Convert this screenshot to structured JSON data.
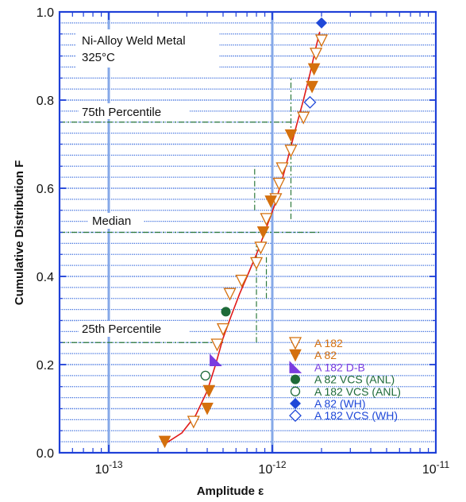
{
  "chart_data": {
    "type": "scatter",
    "title": "",
    "xlabel": "Amplitude ε",
    "ylabel": "Cumulative Distribution F",
    "x_scale": "log",
    "xlim": [
      5e-14,
      1e-11
    ],
    "ylim": [
      0,
      1
    ],
    "x_ticks": [
      {
        "value": 1e-13,
        "label": "10^-13",
        "base": "10",
        "exp": "-13"
      },
      {
        "value": 1e-12,
        "label": "10^-12",
        "base": "10",
        "exp": "-12"
      },
      {
        "value": 1e-11,
        "label": "10^-11",
        "base": "10",
        "exp": "-11"
      }
    ],
    "y_ticks": [
      {
        "value": 0.0,
        "label": "0.0"
      },
      {
        "value": 0.2,
        "label": "0.2"
      },
      {
        "value": 0.4,
        "label": "0.4"
      },
      {
        "value": 0.6,
        "label": "0.6"
      },
      {
        "value": 0.8,
        "label": "0.8"
      },
      {
        "value": 1.0,
        "label": "1.0"
      }
    ],
    "annotations": {
      "material": "Ni-Alloy Weld Metal",
      "temperature": "325°C",
      "p75": "75th Percentile",
      "median": "Median",
      "p25": "25th Percentile"
    },
    "colors": {
      "axis_frame": "#1f40d8",
      "grid": "#4a78e0",
      "major_vline": "#86a9e8",
      "orange": "#d4700e",
      "purple": "#7a3ce0",
      "green": "#1e6a38",
      "blue": "#1f48d8",
      "fit_curve": "#e01a1a",
      "percentile_lines": "#2e7a3c"
    },
    "series": [
      {
        "name": "A 182",
        "marker": "triangle-down-open",
        "color": "#d4700e",
        "points": [
          [
            3.3e-13,
            0.07
          ],
          [
            4.6e-13,
            0.245
          ],
          [
            5e-13,
            0.28
          ],
          [
            5.5e-13,
            0.36
          ],
          [
            6.5e-13,
            0.39
          ],
          [
            8e-13,
            0.43
          ],
          [
            8.5e-13,
            0.465
          ],
          [
            9.2e-13,
            0.53
          ],
          [
            1.05e-12,
            0.575
          ],
          [
            1.1e-12,
            0.61
          ],
          [
            1.15e-12,
            0.645
          ],
          [
            1.3e-12,
            0.685
          ],
          [
            1.55e-12,
            0.76
          ],
          [
            1.85e-12,
            0.905
          ],
          [
            2e-12,
            0.935
          ]
        ]
      },
      {
        "name": "A 82",
        "marker": "triangle-down-filled",
        "color": "#d4700e",
        "points": [
          [
            2.2e-13,
            0.025
          ],
          [
            4e-13,
            0.1
          ],
          [
            4.1e-13,
            0.14
          ],
          [
            8.8e-13,
            0.5
          ],
          [
            9.8e-13,
            0.57
          ],
          [
            1.3e-12,
            0.72
          ],
          [
            1.75e-12,
            0.83
          ],
          [
            1.8e-12,
            0.87
          ]
        ]
      },
      {
        "name": "A 182 D-B",
        "marker": "triangle-right-filled",
        "color": "#7a3ce0",
        "points": [
          [
            4.5e-13,
            0.21
          ]
        ]
      },
      {
        "name": "A 82 VCS (ANL)",
        "marker": "circle-filled",
        "color": "#1e6a38",
        "points": [
          [
            5.2e-13,
            0.32
          ]
        ]
      },
      {
        "name": "A 182 VCS (ANL)",
        "marker": "circle-open",
        "color": "#1e6a38",
        "points": [
          [
            3.9e-13,
            0.175
          ]
        ]
      },
      {
        "name": "A 82 (WH)",
        "marker": "diamond-filled",
        "color": "#1f48d8",
        "points": [
          [
            2e-12,
            0.975
          ]
        ]
      },
      {
        "name": "A 182 VCS (WH)",
        "marker": "diamond-open",
        "color": "#1f48d8",
        "points": [
          [
            1.7e-12,
            0.795
          ]
        ]
      }
    ],
    "fit_curve": [
      [
        2.2e-13,
        0.02
      ],
      [
        2.8e-13,
        0.045
      ],
      [
        3.4e-13,
        0.085
      ],
      [
        4e-13,
        0.14
      ],
      [
        4.5e-13,
        0.2
      ],
      [
        5e-13,
        0.26
      ],
      [
        5.6e-13,
        0.31
      ],
      [
        6.3e-13,
        0.36
      ],
      [
        7.2e-13,
        0.41
      ],
      [
        8.2e-13,
        0.46
      ],
      [
        9.2e-13,
        0.51
      ],
      [
        1.03e-12,
        0.56
      ],
      [
        1.15e-12,
        0.62
      ],
      [
        1.27e-12,
        0.68
      ],
      [
        1.4e-12,
        0.74
      ],
      [
        1.55e-12,
        0.8
      ],
      [
        1.7e-12,
        0.86
      ],
      [
        1.85e-12,
        0.92
      ],
      [
        1.95e-12,
        0.955
      ]
    ],
    "percentiles": {
      "p75": {
        "y": 0.75,
        "x": 1.3e-12
      },
      "median": {
        "y": 0.5,
        "x": 9e-13
      },
      "p25": {
        "y": 0.25,
        "x": 5e-13
      },
      "bands": {
        "p25_low": 8e-13,
        "p75_high": 1.3e-12,
        "median_low": 7.8e-13,
        "median_high": 9.2e-13
      }
    },
    "legend_position": "lower-right"
  }
}
